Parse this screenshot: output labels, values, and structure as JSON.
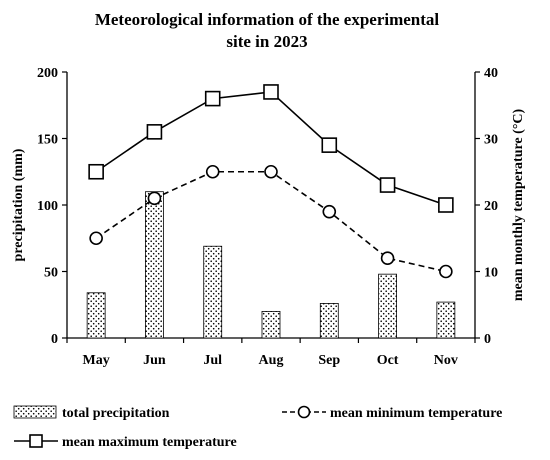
{
  "chart_data": {
    "type": "bar",
    "title_lines": [
      "Meteorological information of the experimental",
      "site in 2023"
    ],
    "categories": [
      "May",
      "Jun",
      "Jul",
      "Aug",
      "Sep",
      "Oct",
      "Nov"
    ],
    "y_left": {
      "label": "precipitation (mm)",
      "range": [
        0,
        200
      ],
      "ticks": [
        0,
        50,
        100,
        150,
        200
      ]
    },
    "y_right": {
      "label": "mean monthly temperature (°C)",
      "range": [
        0,
        40
      ],
      "ticks": [
        0,
        10,
        20,
        30,
        40
      ]
    },
    "grid": false,
    "series": [
      {
        "name": "total precipitation",
        "type": "bar",
        "axis": "left",
        "values": [
          34,
          110,
          69,
          20,
          26,
          48,
          27
        ]
      },
      {
        "name": "mean minimum temperature",
        "type": "line",
        "style": "dashed",
        "marker": "circle",
        "axis": "right",
        "values": [
          15,
          21,
          25,
          25,
          19,
          12,
          10
        ]
      },
      {
        "name": "mean maximum temperature",
        "type": "line",
        "style": "solid",
        "marker": "square",
        "axis": "right",
        "values": [
          25,
          31,
          36,
          37,
          29,
          23,
          20
        ]
      }
    ],
    "legend_position": "bottom"
  }
}
